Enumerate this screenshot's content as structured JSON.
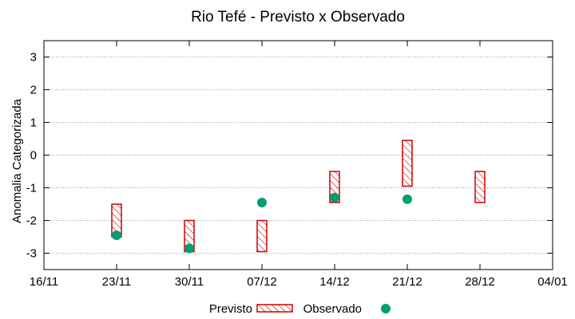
{
  "chart_data": {
    "type": "scatter",
    "title": "Rio Tefé - Previsto x Observado",
    "ylabel": "Anomalia Categorizada",
    "xlabel": "",
    "ylim": [
      -3.5,
      3.5
    ],
    "yticks": [
      "3",
      "2",
      "1",
      "0",
      "-1",
      "-2",
      "-3"
    ],
    "xticks": [
      "16/11",
      "23/11",
      "30/11",
      "07/12",
      "14/12",
      "21/12",
      "28/12",
      "04/01"
    ],
    "grid": "horizontal dotted",
    "legend_position": "bottom",
    "series": [
      {
        "name": "Previsto",
        "kind": "range-box",
        "color": "#cc0000",
        "points": [
          {
            "x": "23/11",
            "low": -2.5,
            "high": -1.5
          },
          {
            "x": "30/11",
            "low": -2.95,
            "high": -2.0
          },
          {
            "x": "07/12",
            "low": -2.95,
            "high": -2.0
          },
          {
            "x": "14/12",
            "low": -1.45,
            "high": -0.5
          },
          {
            "x": "21/12",
            "low": -0.95,
            "high": 0.45
          },
          {
            "x": "28/12",
            "low": -1.45,
            "high": -0.5
          }
        ]
      },
      {
        "name": "Observado",
        "kind": "point",
        "color": "#009e73",
        "points": [
          {
            "x": "23/11",
            "y": -2.45
          },
          {
            "x": "30/11",
            "y": -2.85
          },
          {
            "x": "07/12",
            "y": -1.45
          },
          {
            "x": "14/12",
            "y": -1.3
          },
          {
            "x": "21/12",
            "y": -1.35
          }
        ]
      }
    ]
  }
}
